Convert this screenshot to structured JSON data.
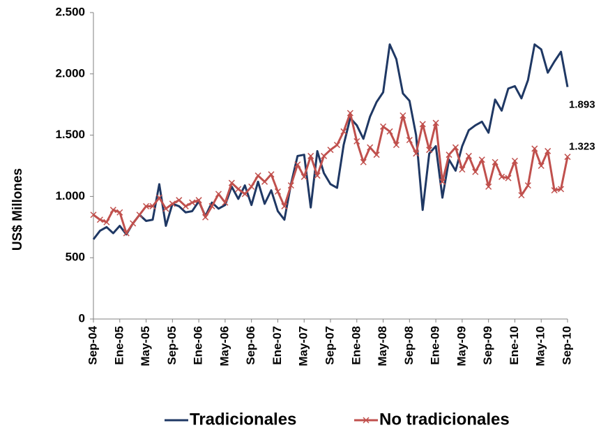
{
  "chart_data": {
    "type": "line",
    "ylabel": "US$ Millones",
    "categories": [
      "Sep-04",
      null,
      null,
      null,
      "Ene-05",
      null,
      null,
      null,
      "May-05",
      null,
      null,
      null,
      "Sep-05",
      null,
      null,
      null,
      "Ene-06",
      null,
      null,
      null,
      "May-06",
      null,
      null,
      null,
      "Sep-06",
      null,
      null,
      null,
      "Ene-07",
      null,
      null,
      null,
      "May-07",
      null,
      null,
      null,
      "Sep-07",
      null,
      null,
      null,
      "Ene-08",
      null,
      null,
      null,
      "May-08",
      null,
      null,
      null,
      "Sep-08",
      null,
      null,
      null,
      "Ene-09",
      null,
      null,
      null,
      "May-09",
      null,
      null,
      null,
      "Sep-09",
      null,
      null,
      null,
      "Ene-10",
      null,
      null,
      null,
      "May-10",
      null,
      null,
      null,
      "Sep-10"
    ],
    "series": [
      {
        "name": "Tradicionales",
        "color": "#1f3864",
        "marker": null,
        "values": [
          650,
          720,
          750,
          700,
          760,
          690,
          780,
          850,
          800,
          810,
          1100,
          760,
          940,
          920,
          870,
          880,
          960,
          840,
          950,
          900,
          930,
          1080,
          980,
          1090,
          930,
          1120,
          940,
          1050,
          880,
          810,
          1100,
          1330,
          1340,
          910,
          1370,
          1190,
          1100,
          1070,
          1420,
          1640,
          1580,
          1470,
          1650,
          1770,
          1850,
          2240,
          2120,
          1840,
          1780,
          1500,
          890,
          1350,
          1410,
          990,
          1300,
          1210,
          1410,
          1540,
          1580,
          1610,
          1520,
          1790,
          1700,
          1880,
          1900,
          1800,
          1950,
          2240,
          2200,
          2010,
          2100,
          2180,
          1893
        ],
        "value_labels": [
          null,
          null,
          null,
          null,
          null,
          null,
          null,
          null,
          null,
          null,
          null,
          null,
          null,
          null,
          null,
          null,
          null,
          null,
          null,
          null,
          null,
          null,
          null,
          null,
          null,
          null,
          null,
          null,
          null,
          null,
          null,
          null,
          null,
          null,
          null,
          null,
          null,
          null,
          null,
          null,
          null,
          null,
          null,
          null,
          null,
          null,
          null,
          null,
          null,
          null,
          null,
          null,
          null,
          null,
          null,
          null,
          null,
          null,
          null,
          null,
          null,
          null,
          null,
          null,
          null,
          null,
          null,
          null,
          null,
          null,
          null,
          null,
          "1.893"
        ]
      },
      {
        "name": "No tradicionales",
        "color": "#c0504d",
        "marker": "x",
        "values": [
          850,
          810,
          790,
          890,
          870,
          700,
          780,
          850,
          920,
          920,
          990,
          900,
          940,
          970,
          920,
          950,
          970,
          830,
          920,
          1020,
          950,
          1110,
          1060,
          1020,
          1080,
          1170,
          1120,
          1180,
          1040,
          920,
          1090,
          1260,
          1160,
          1330,
          1170,
          1330,
          1380,
          1420,
          1530,
          1680,
          1450,
          1280,
          1400,
          1340,
          1570,
          1530,
          1420,
          1660,
          1460,
          1350,
          1590,
          1380,
          1600,
          1120,
          1340,
          1400,
          1220,
          1330,
          1200,
          1300,
          1080,
          1280,
          1160,
          1150,
          1290,
          1010,
          1090,
          1390,
          1250,
          1370,
          1050,
          1060,
          1323
        ],
        "value_labels": [
          null,
          null,
          null,
          null,
          null,
          null,
          null,
          null,
          null,
          null,
          null,
          null,
          null,
          null,
          null,
          null,
          null,
          null,
          null,
          null,
          null,
          null,
          null,
          null,
          null,
          null,
          null,
          null,
          null,
          null,
          null,
          null,
          null,
          null,
          null,
          null,
          null,
          null,
          null,
          null,
          null,
          null,
          null,
          null,
          null,
          null,
          null,
          null,
          null,
          null,
          null,
          null,
          null,
          null,
          null,
          null,
          null,
          null,
          null,
          null,
          null,
          null,
          null,
          null,
          null,
          null,
          null,
          null,
          null,
          null,
          null,
          null,
          "1.323"
        ]
      }
    ],
    "ylim": [
      0,
      2500
    ],
    "yticks": [
      0,
      500,
      {
        "value": 1000,
        "label": "1.000"
      },
      {
        "value": 1500,
        "label": "1.500"
      },
      {
        "value": 2000,
        "label": "2.000"
      },
      {
        "value": 2500,
        "label": "2.500"
      }
    ],
    "grid": false,
    "legend": "bottom"
  }
}
